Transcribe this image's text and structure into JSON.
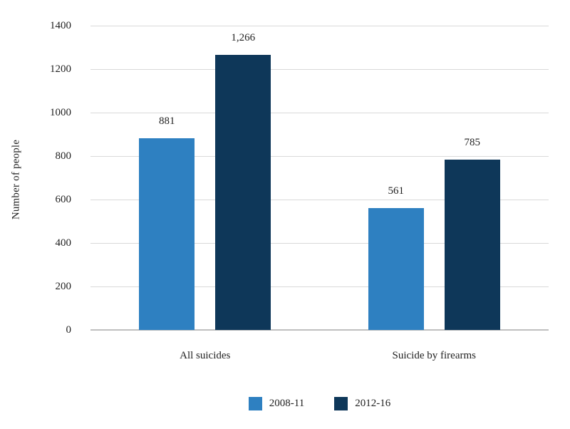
{
  "chart_data": {
    "type": "bar",
    "ylabel": "Number of people",
    "categories": [
      "All suicides",
      "Suicide by firearms"
    ],
    "series": [
      {
        "name": "2008-11",
        "color": "#2E80C1",
        "values": [
          881,
          561
        ],
        "value_labels": [
          "881",
          "561"
        ]
      },
      {
        "name": "2012-16",
        "color": "#0E3759",
        "values": [
          1266,
          785
        ],
        "value_labels": [
          "1,266",
          "785"
        ]
      }
    ],
    "ylim": [
      0,
      1400
    ],
    "yticks": [
      0,
      200,
      400,
      600,
      800,
      1000,
      1200,
      1400
    ],
    "ytick_labels": [
      "0",
      "200",
      "400",
      "600",
      "800",
      "1000",
      "1200",
      "1400"
    ],
    "grid": true,
    "legend_position": "bottom"
  },
  "colors": {
    "background": "#FFFFFF",
    "gridline": "#D9D9D9",
    "axis_line": "#BFBFBF",
    "text": "#1F1F1F"
  }
}
